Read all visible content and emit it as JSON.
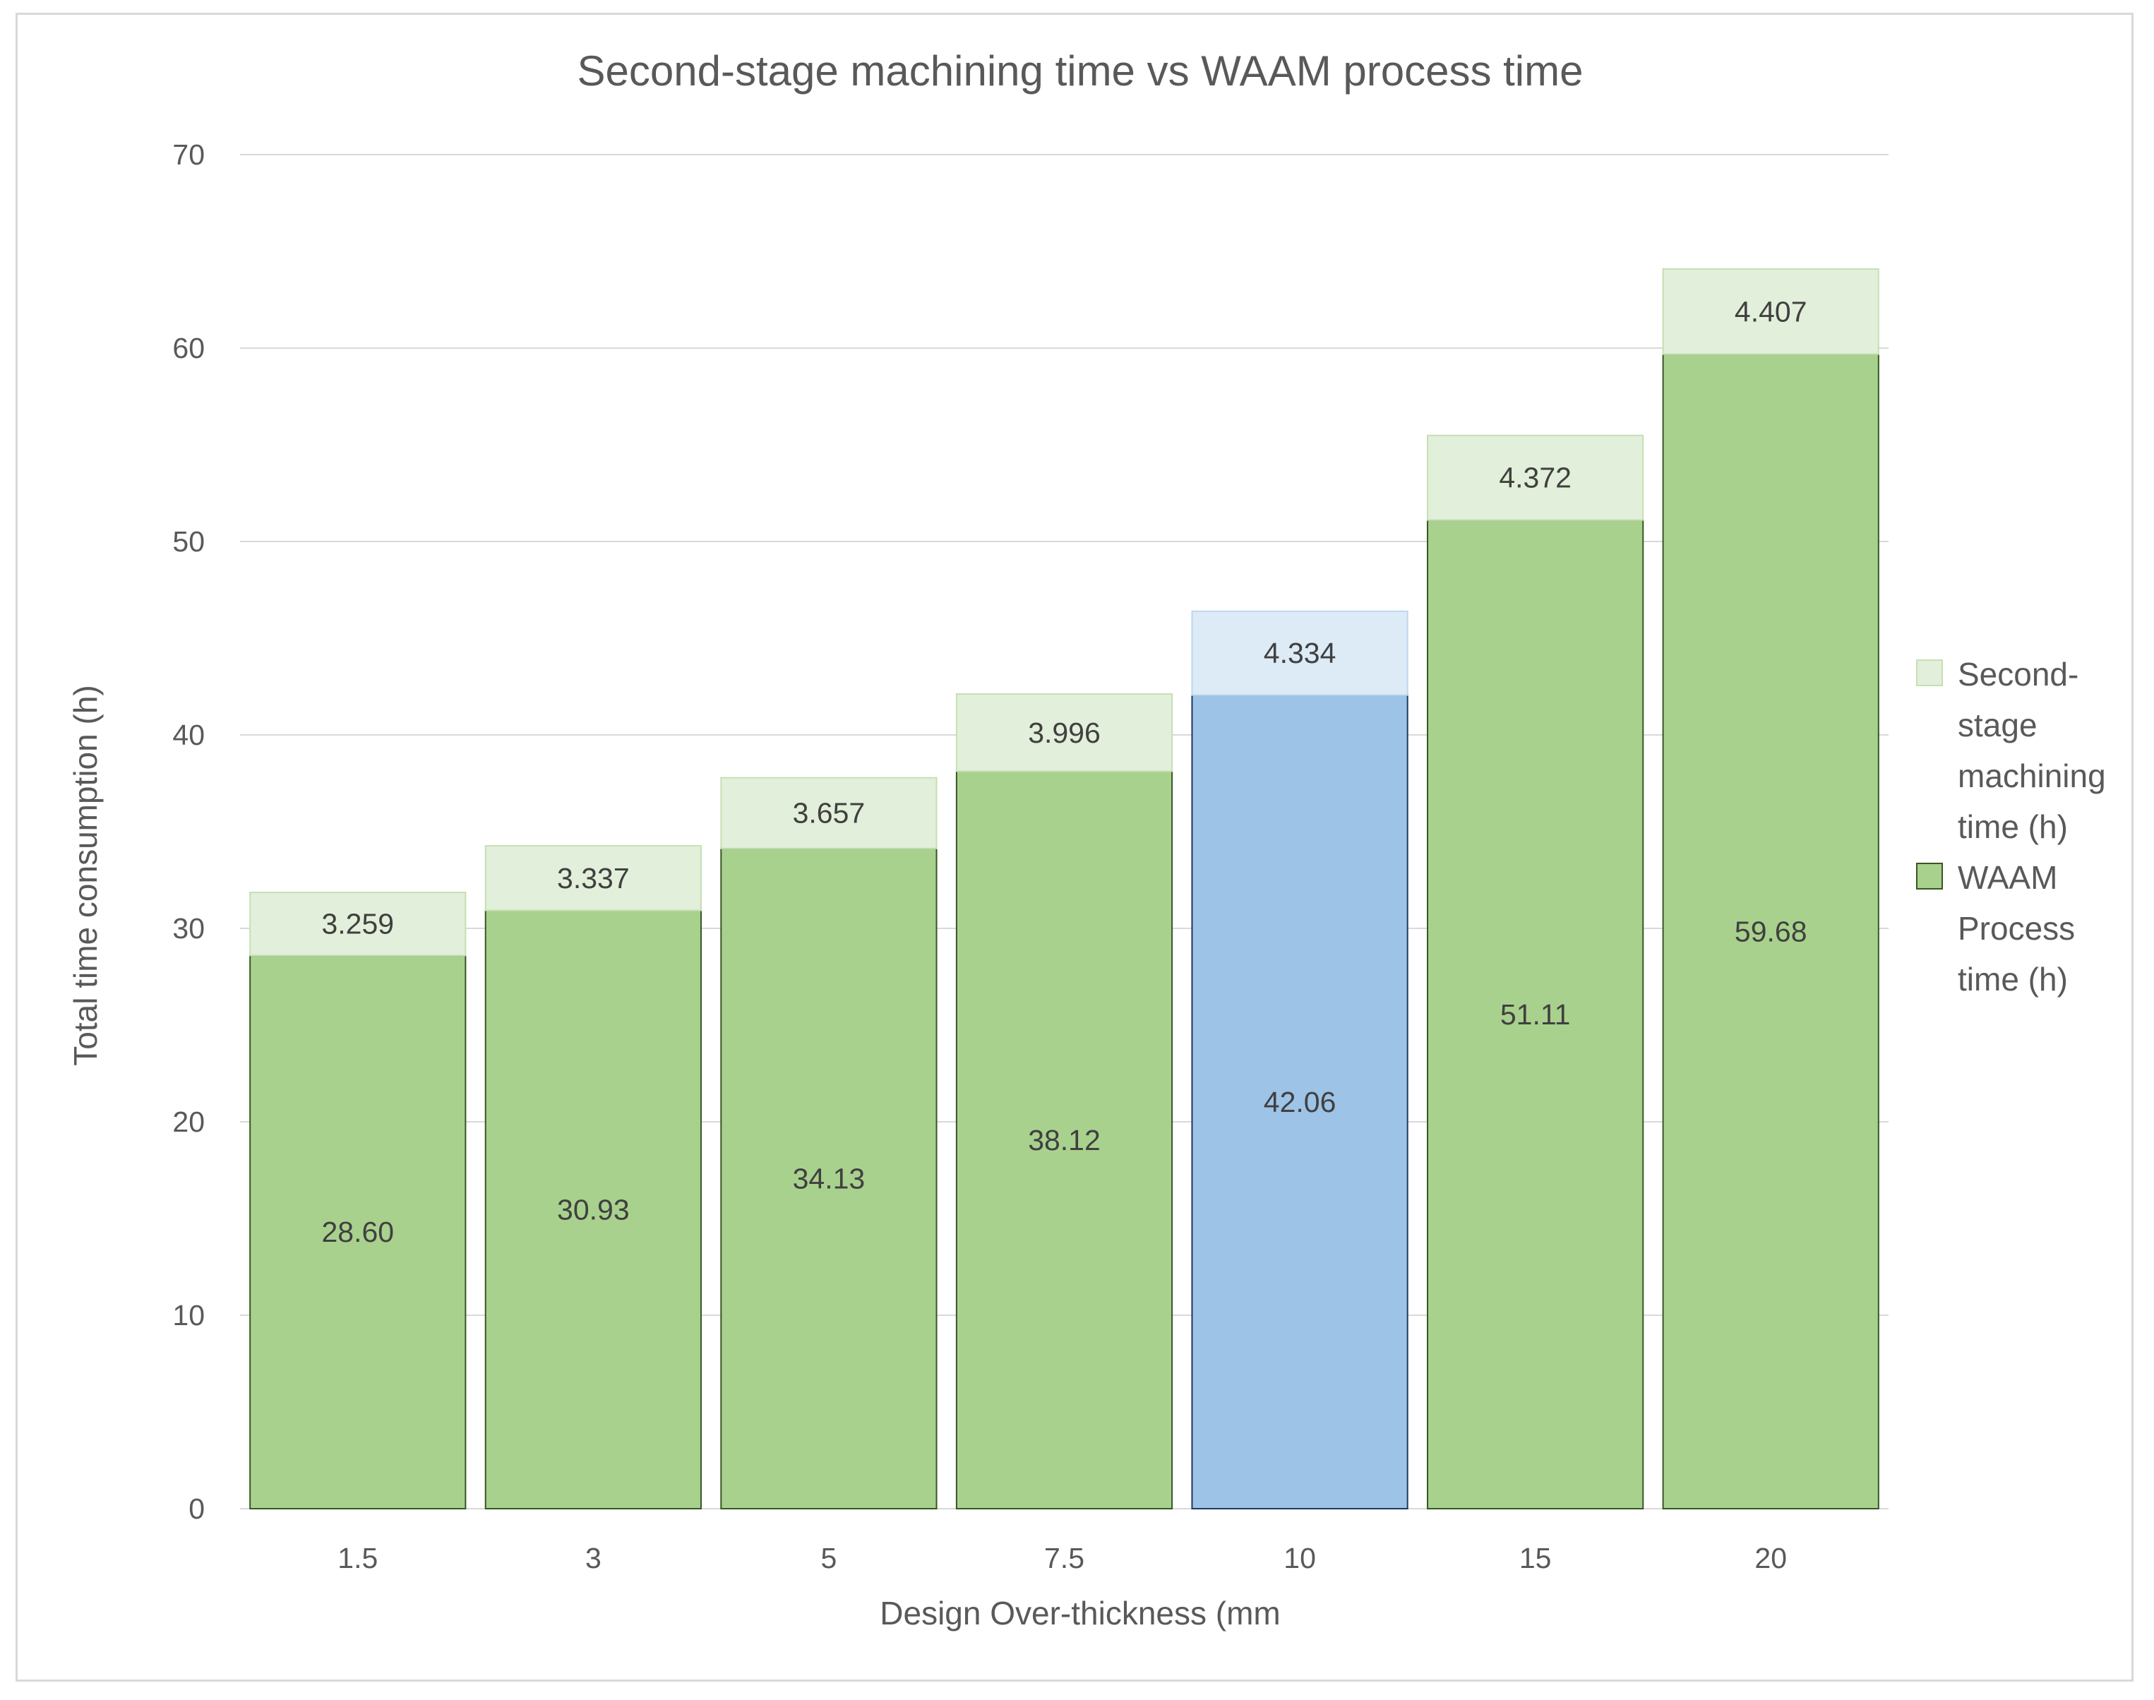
{
  "chart_data": {
    "type": "bar",
    "stacked": true,
    "title": "Second-stage machining time vs WAAM process time",
    "xlabel": "Design Over-thickness (mm",
    "ylabel": "Total time consumption (h)",
    "categories": [
      "1.5",
      "3",
      "5",
      "7.5",
      "10",
      "15",
      "20"
    ],
    "ylim": [
      0,
      70
    ],
    "yticks": [
      0,
      10,
      20,
      30,
      40,
      50,
      60,
      70
    ],
    "grid": true,
    "legend_position": "right",
    "highlighted_category": "10",
    "series": [
      {
        "name": "WAAM Process time (h)",
        "values": [
          28.6,
          30.93,
          34.13,
          38.12,
          42.06,
          51.11,
          59.68
        ],
        "labels": [
          "28.60",
          "30.93",
          "34.13",
          "38.12",
          "42.06",
          "51.11",
          "59.68"
        ],
        "color": "#a9d18e",
        "border_color": "#375623",
        "highlight_color": "#9dc3e6",
        "highlight_border_color": "#1f3864"
      },
      {
        "name": "Second-stage machining time (h)",
        "values": [
          3.259,
          3.337,
          3.657,
          3.996,
          4.334,
          4.372,
          4.407
        ],
        "labels": [
          "3.259",
          "3.337",
          "3.657",
          "3.996",
          "4.334",
          "4.372",
          "4.407"
        ],
        "color": "#e2efda",
        "border_color": "#c5e0b4",
        "highlight_color": "#ddebf7",
        "highlight_border_color": "#bdd7ee"
      }
    ],
    "legend": [
      {
        "lines": [
          "Second-",
          "stage",
          "machining",
          "time (h)"
        ],
        "series": 1
      },
      {
        "lines": [
          "WAAM",
          "Process",
          "time (h)"
        ],
        "series": 0
      }
    ]
  }
}
